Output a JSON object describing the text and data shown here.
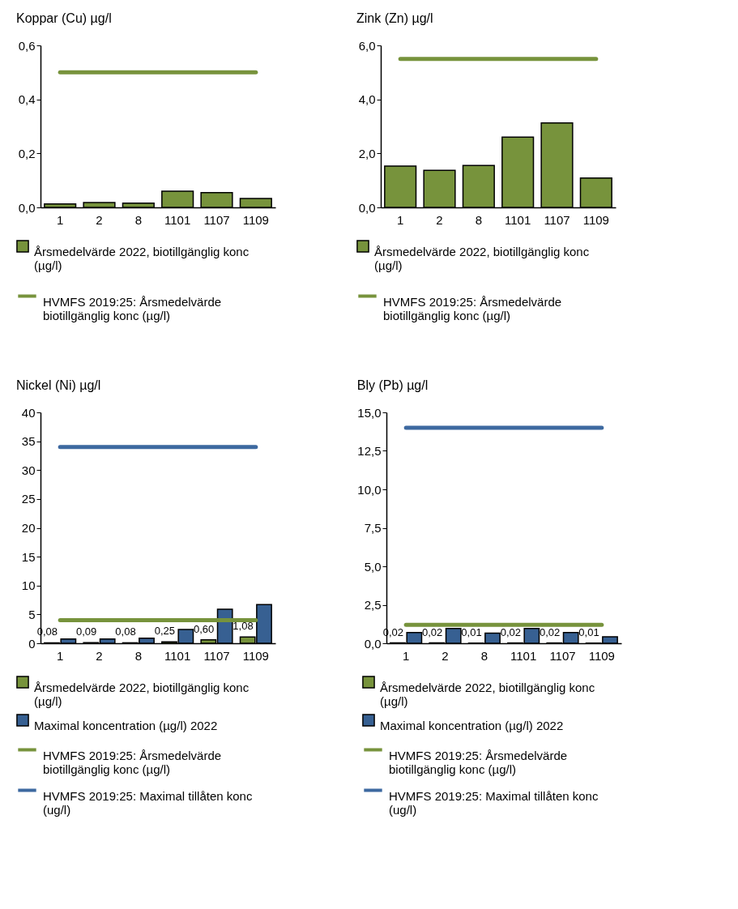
{
  "chart_data": [
    {
      "type": "bar",
      "title": "Koppar (Cu) µg/l",
      "categories": [
        "1",
        "2",
        "8",
        "1101",
        "1107",
        "1109"
      ],
      "ylim": [
        0,
        0.6
      ],
      "yticks": [
        {
          "value": 0,
          "label": "0,0"
        },
        {
          "value": 0.2,
          "label": "0,2"
        },
        {
          "value": 0.4,
          "label": "0,4"
        },
        {
          "value": 0.6,
          "label": "0,6"
        }
      ],
      "legend": "bottom",
      "series": [
        {
          "name": "Årsmedelvärde 2022, biotillgänglig konc (µg/l)",
          "color": "#77933c",
          "values": [
            0.013,
            0.018,
            0.016,
            0.06,
            0.055,
            0.033
          ]
        },
        {
          "name": "HVMFS 2019:25: Årsmedelvärde biotillgänglig konc (µg/l)",
          "type": "line",
          "color": "#77933c",
          "values": [
            0.5,
            0.5,
            0.5,
            0.5,
            0.5,
            0.5
          ]
        }
      ]
    },
    {
      "type": "bar",
      "title": "Zink (Zn) µg/l",
      "categories": [
        "1",
        "2",
        "8",
        "1101",
        "1107",
        "1109"
      ],
      "ylim": [
        0,
        6
      ],
      "yticks": [
        {
          "value": 0,
          "label": "0,0"
        },
        {
          "value": 2,
          "label": "2,0"
        },
        {
          "value": 4,
          "label": "4,0"
        },
        {
          "value": 6,
          "label": "6,0"
        }
      ],
      "legend": "bottom",
      "series": [
        {
          "name": "Årsmedelvärde 2022, biotillgänglig konc (µg/l)",
          "color": "#77933c",
          "values": [
            1.53,
            1.37,
            1.55,
            2.6,
            3.13,
            1.09
          ]
        },
        {
          "name": "HVMFS 2019:25: Årsmedelvärde biotillgänglig konc (µg/l)",
          "type": "line",
          "color": "#77933c",
          "values": [
            5.5,
            5.5,
            5.5,
            5.5,
            5.5,
            5.5
          ]
        }
      ]
    },
    {
      "type": "bar",
      "title": "Nickel (Ni) µg/l",
      "categories": [
        "1",
        "2",
        "8",
        "1101",
        "1107",
        "1109"
      ],
      "ylim": [
        0,
        40
      ],
      "yticks": [
        0,
        5,
        10,
        15,
        20,
        25,
        30,
        35,
        40
      ],
      "legend": "bottom",
      "series": [
        {
          "name": "Årsmedelvärde 2022, biotillgänglig konc (µg/l)",
          "color": "#77933c",
          "values": [
            0.08,
            0.09,
            0.08,
            0.25,
            0.6,
            1.08
          ],
          "value_labels": [
            "0,08",
            "0,09",
            "0,08",
            "0,25",
            "0,60",
            "1,08"
          ]
        },
        {
          "name": "Maximal koncentration (µg/l) 2022",
          "color": "#376092",
          "values": [
            0.73,
            0.73,
            0.86,
            2.4,
            5.9,
            6.7
          ]
        },
        {
          "name": "HVMFS 2019:25: Årsmedelvärde biotillgänglig konc (µg/l)",
          "type": "line",
          "color": "#77933c",
          "values": [
            4,
            4,
            4,
            4,
            4,
            4
          ]
        },
        {
          "name": "HVMFS 2019:25: Maximal tillåten konc (ug/l)",
          "type": "line",
          "color": "#3d69a0",
          "values": [
            34,
            34,
            34,
            34,
            34,
            34
          ]
        }
      ]
    },
    {
      "type": "bar",
      "title": "Bly (Pb) µg/l",
      "categories": [
        "1",
        "2",
        "8",
        "1101",
        "1107",
        "1109"
      ],
      "ylim": [
        0,
        15
      ],
      "yticks": [
        {
          "value": 0,
          "label": "0,0"
        },
        {
          "value": 2.5,
          "label": "2,5"
        },
        {
          "value": 5,
          "label": "5,0"
        },
        {
          "value": 7.5,
          "label": "7,5"
        },
        {
          "value": 10,
          "label": "10,0"
        },
        {
          "value": 12.5,
          "label": "12,5"
        },
        {
          "value": 15,
          "label": "15,0"
        }
      ],
      "legend": "bottom",
      "series": [
        {
          "name": "Årsmedelvärde 2022, biotillgänglig konc (µg/l)",
          "color": "#77933c",
          "values": [
            0.02,
            0.02,
            0.01,
            0.02,
            0.02,
            0.01
          ],
          "value_labels": [
            "0,02",
            "0,02",
            "0,01",
            "0,02",
            "0,02",
            "0,01"
          ]
        },
        {
          "name": "Maximal koncentration (µg/l) 2022",
          "color": "#376092",
          "values": [
            0.7,
            0.96,
            0.66,
            0.96,
            0.7,
            0.42
          ]
        },
        {
          "name": "HVMFS 2019:25: Årsmedelvärde biotillgänglig konc (µg/l)",
          "type": "line",
          "color": "#77933c",
          "values": [
            1.2,
            1.2,
            1.2,
            1.2,
            1.2,
            1.2
          ]
        },
        {
          "name": "HVMFS 2019:25: Maximal tillåten konc (ug/l)",
          "type": "line",
          "color": "#3d69a0",
          "values": [
            14,
            14,
            14,
            14,
            14,
            14
          ]
        }
      ]
    }
  ]
}
